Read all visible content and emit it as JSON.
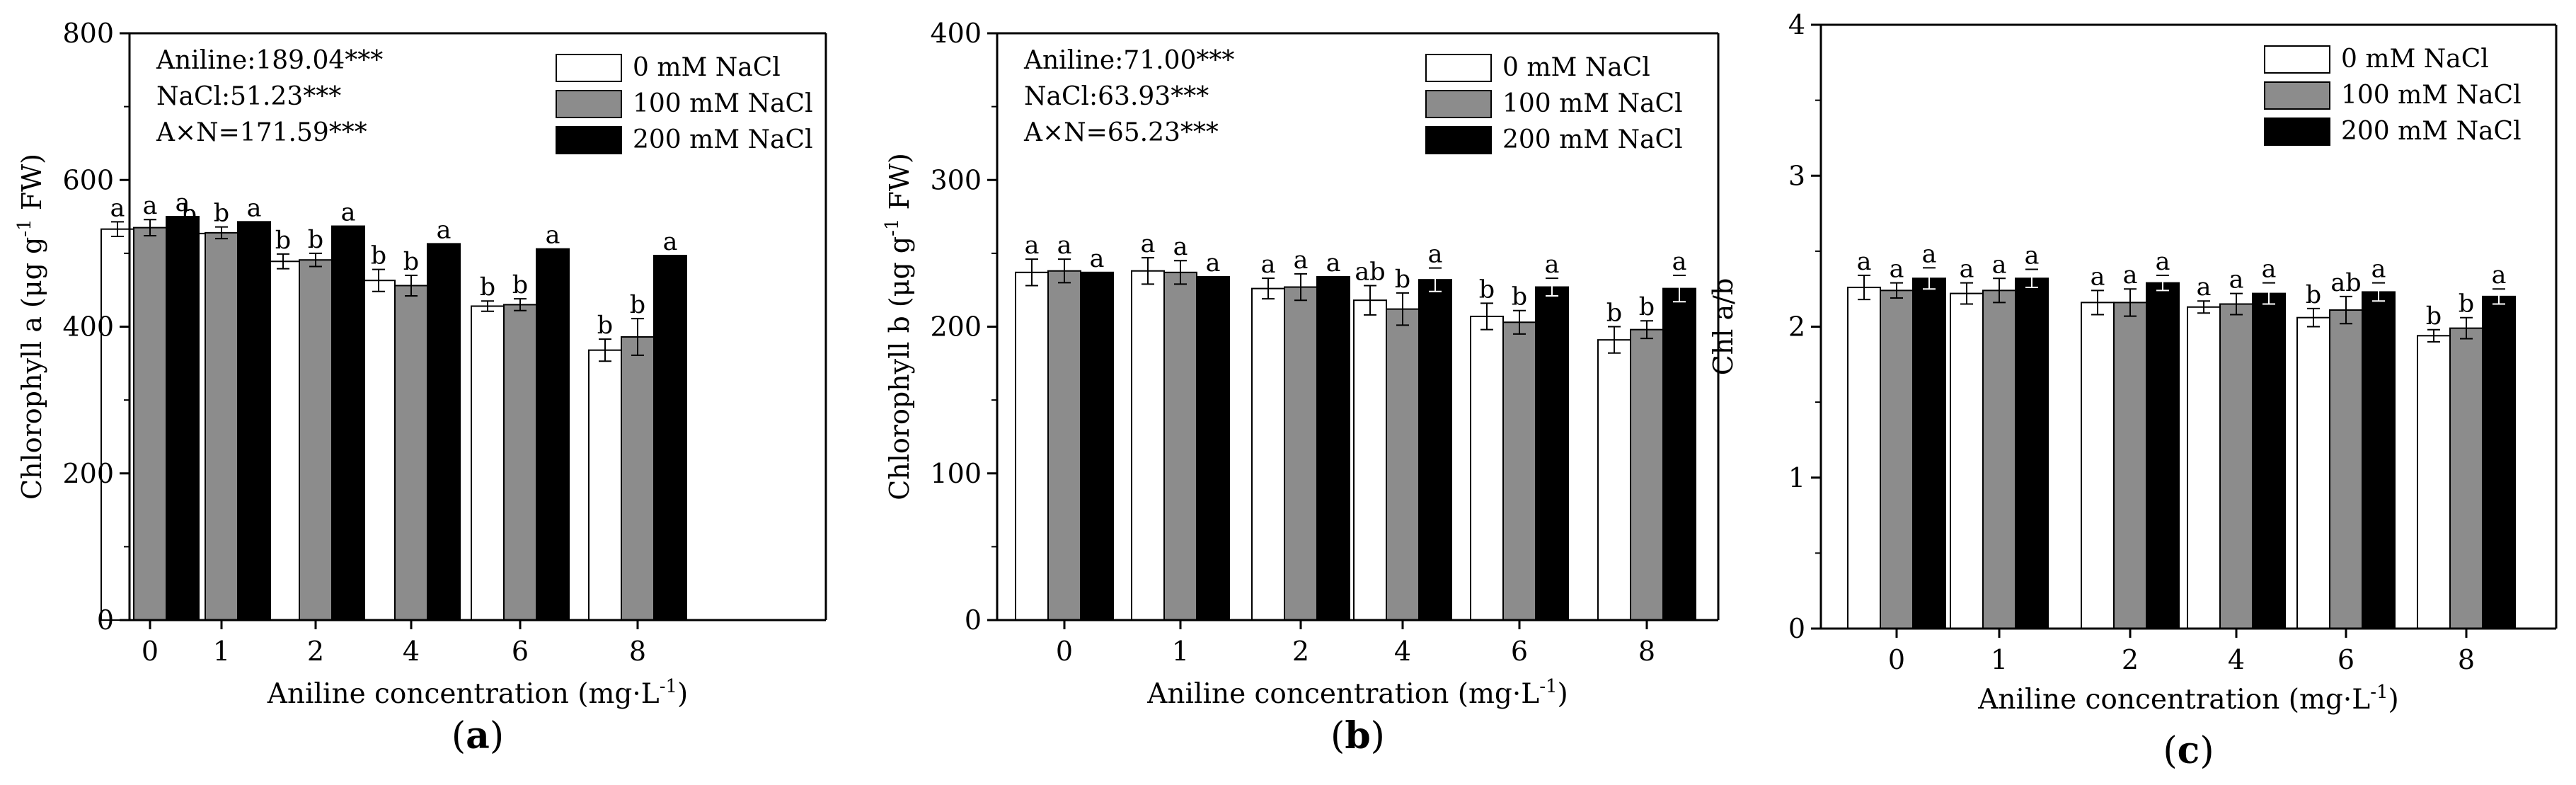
{
  "colors": {
    "zero": "#ffffff",
    "hundred": "#8c8c8c",
    "twohundred": "#000000",
    "axis": "#000000"
  },
  "chart_data": [
    {
      "type": "bar",
      "panel_label": "a",
      "categories": [
        "0",
        "1",
        "2",
        "4",
        "6",
        "8"
      ],
      "xlabel": "Aniline concentration (mg·L",
      "xlabel_sup": "-1",
      "xlabel_end": ")",
      "ylabel": "Chlorophyll a (μg g",
      "ylabel_sup": "-1",
      "ylabel_end": " FW)",
      "ylim": [
        0,
        800
      ],
      "yticks": [
        0,
        200,
        400,
        600,
        800
      ],
      "ytick_labels": [
        "0",
        "200",
        "400",
        "600",
        "800"
      ],
      "stats": [
        "Aniline:189.04***",
        "NaCl:51.23***",
        "A×N=171.59***"
      ],
      "legend_position": "top-right",
      "series": [
        {
          "name": "0 mM  NaCl",
          "values": [
            533,
            527,
            489,
            463,
            428,
            368
          ],
          "errors": [
            10,
            8,
            10,
            15,
            7,
            15
          ],
          "letters": [
            "a",
            "b",
            "b",
            "b",
            "b",
            "b"
          ]
        },
        {
          "name": "100 mM  NaCl",
          "values": [
            535,
            528,
            491,
            456,
            430,
            386
          ],
          "errors": [
            11,
            8,
            9,
            14,
            8,
            25
          ],
          "letters": [
            "a",
            "b",
            "b",
            "b",
            "b",
            "b"
          ]
        },
        {
          "name": "200 mM  NaCl",
          "values": [
            550,
            543,
            537,
            513,
            506,
            497
          ],
          "errors": [
            0,
            0,
            0,
            0,
            0,
            0
          ],
          "letters": [
            "a",
            "a",
            "a",
            "a",
            "a",
            "a"
          ]
        }
      ]
    },
    {
      "type": "bar",
      "panel_label": "b",
      "categories": [
        "0",
        "1",
        "2",
        "4",
        "6",
        "8"
      ],
      "xlabel": "Aniline concentration (mg·L",
      "xlabel_sup": "-1",
      "xlabel_end": ")",
      "ylabel": "Chlorophyll b (μg g",
      "ylabel_sup": "-1",
      "ylabel_end": " FW)",
      "ylim": [
        0,
        400
      ],
      "yticks": [
        0,
        100,
        200,
        300,
        400
      ],
      "ytick_labels": [
        "0",
        "100",
        "200",
        "300",
        "400"
      ],
      "stats": [
        "Aniline:71.00***",
        "NaCl:63.93***",
        "A×N=65.23***"
      ],
      "legend_position": "top-right",
      "series": [
        {
          "name": "0 mM  NaCl",
          "values": [
            237,
            238,
            226,
            218,
            207,
            191
          ],
          "errors": [
            9,
            9,
            7,
            10,
            9,
            9
          ],
          "letters": [
            "a",
            "a",
            "a",
            "ab",
            "b",
            "b"
          ]
        },
        {
          "name": "100 mM  NaCl",
          "values": [
            238,
            237,
            227,
            212,
            203,
            198
          ],
          "errors": [
            8,
            8,
            9,
            11,
            8,
            6
          ],
          "letters": [
            "a",
            "a",
            "a",
            "b",
            "b",
            "b"
          ]
        },
        {
          "name": "200 mM  NaCl",
          "values": [
            237,
            234,
            234,
            232,
            227,
            226
          ],
          "errors": [
            0,
            0,
            0,
            8,
            6,
            9
          ],
          "letters": [
            "a",
            "a",
            "a",
            "a",
            "a",
            "a"
          ]
        }
      ]
    },
    {
      "type": "bar",
      "panel_label": "c",
      "categories": [
        "0",
        "1",
        "2",
        "4",
        "6",
        "8"
      ],
      "xlabel": "Aniline concentration (mg·L",
      "xlabel_sup": "-1",
      "xlabel_end": ")",
      "ylabel": "Chl a/b",
      "ylabel_sup": "",
      "ylabel_end": "",
      "ylim": [
        0,
        4
      ],
      "yticks": [
        0,
        1,
        2,
        3,
        4
      ],
      "ytick_labels": [
        "0",
        "1",
        "2",
        "3",
        "4"
      ],
      "stats": [],
      "legend_position": "top-right",
      "series": [
        {
          "name": "0 mM  NaCl",
          "values": [
            2.26,
            2.22,
            2.16,
            2.13,
            2.06,
            1.94
          ],
          "errors": [
            0.08,
            0.07,
            0.08,
            0.04,
            0.06,
            0.04
          ],
          "letters": [
            "a",
            "a",
            "a",
            "a",
            "b",
            "b"
          ]
        },
        {
          "name": "100 mM  NaCl",
          "values": [
            2.24,
            2.24,
            2.16,
            2.15,
            2.11,
            1.99
          ],
          "errors": [
            0.05,
            0.08,
            0.09,
            0.07,
            0.09,
            0.07
          ],
          "letters": [
            "a",
            "a",
            "a",
            "a",
            "ab",
            "b"
          ]
        },
        {
          "name": "200 mM  NaCl",
          "values": [
            2.32,
            2.32,
            2.29,
            2.22,
            2.23,
            2.2
          ],
          "errors": [
            0.07,
            0.06,
            0.05,
            0.07,
            0.06,
            0.05
          ],
          "letters": [
            "a",
            "a",
            "a",
            "a",
            "a",
            "a"
          ]
        }
      ]
    }
  ]
}
